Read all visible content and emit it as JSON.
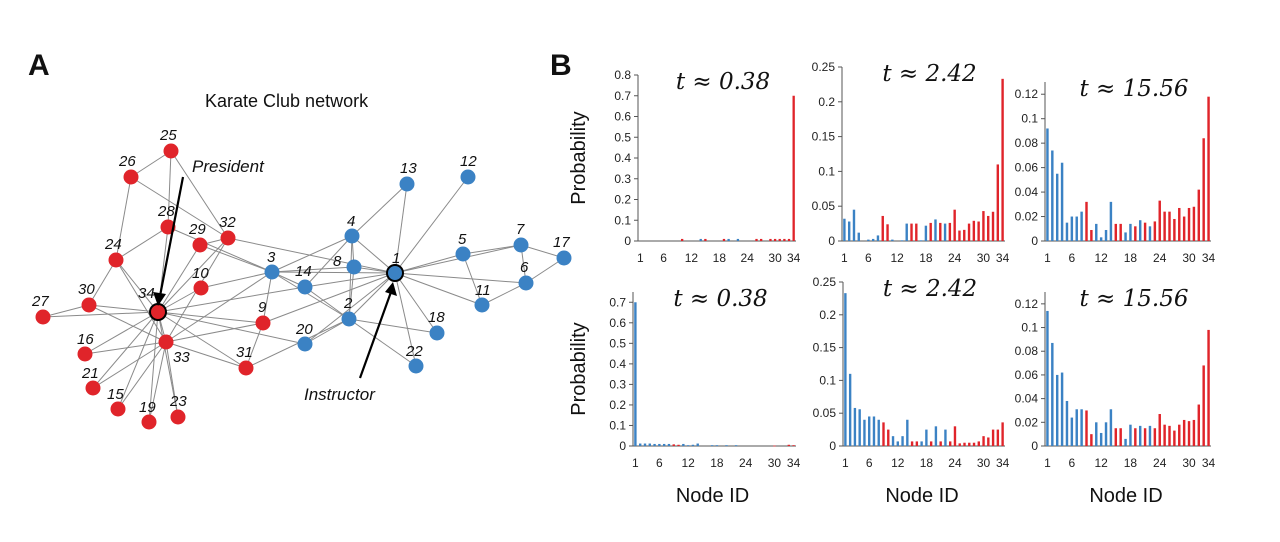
{
  "figure": {
    "panel_a_letter": "A",
    "panel_b_letter": "B",
    "network_title": "Karate Club network",
    "president_label": "President",
    "instructor_label": "Instructor"
  },
  "colors": {
    "faction_instructor": "#3b82c4",
    "faction_president": "#e0242a"
  },
  "network": {
    "nodes": [
      {
        "id": 1,
        "faction": "instructor",
        "highlight": true
      },
      {
        "id": 2,
        "faction": "instructor"
      },
      {
        "id": 3,
        "faction": "instructor"
      },
      {
        "id": 4,
        "faction": "instructor"
      },
      {
        "id": 5,
        "faction": "instructor"
      },
      {
        "id": 6,
        "faction": "instructor"
      },
      {
        "id": 7,
        "faction": "instructor"
      },
      {
        "id": 8,
        "faction": "instructor"
      },
      {
        "id": 9,
        "faction": "president"
      },
      {
        "id": 10,
        "faction": "president"
      },
      {
        "id": 11,
        "faction": "instructor"
      },
      {
        "id": 12,
        "faction": "instructor"
      },
      {
        "id": 13,
        "faction": "instructor"
      },
      {
        "id": 14,
        "faction": "instructor"
      },
      {
        "id": 15,
        "faction": "president"
      },
      {
        "id": 16,
        "faction": "president"
      },
      {
        "id": 17,
        "faction": "instructor"
      },
      {
        "id": 18,
        "faction": "instructor"
      },
      {
        "id": 19,
        "faction": "president"
      },
      {
        "id": 20,
        "faction": "instructor"
      },
      {
        "id": 21,
        "faction": "president"
      },
      {
        "id": 22,
        "faction": "instructor"
      },
      {
        "id": 23,
        "faction": "president"
      },
      {
        "id": 24,
        "faction": "president"
      },
      {
        "id": 25,
        "faction": "president"
      },
      {
        "id": 26,
        "faction": "president"
      },
      {
        "id": 27,
        "faction": "president"
      },
      {
        "id": 28,
        "faction": "president"
      },
      {
        "id": 29,
        "faction": "president"
      },
      {
        "id": 30,
        "faction": "president"
      },
      {
        "id": 31,
        "faction": "president"
      },
      {
        "id": 32,
        "faction": "president"
      },
      {
        "id": 33,
        "faction": "president"
      },
      {
        "id": 34,
        "faction": "president",
        "highlight": true
      }
    ],
    "edges": [
      [
        1,
        2
      ],
      [
        1,
        3
      ],
      [
        1,
        4
      ],
      [
        1,
        5
      ],
      [
        1,
        6
      ],
      [
        1,
        7
      ],
      [
        1,
        8
      ],
      [
        1,
        9
      ],
      [
        1,
        11
      ],
      [
        1,
        12
      ],
      [
        1,
        13
      ],
      [
        1,
        14
      ],
      [
        1,
        18
      ],
      [
        1,
        20
      ],
      [
        1,
        22
      ],
      [
        1,
        32
      ],
      [
        2,
        3
      ],
      [
        2,
        4
      ],
      [
        2,
        8
      ],
      [
        2,
        14
      ],
      [
        2,
        18
      ],
      [
        2,
        20
      ],
      [
        2,
        22
      ],
      [
        2,
        31
      ],
      [
        3,
        4
      ],
      [
        3,
        8
      ],
      [
        3,
        9
      ],
      [
        3,
        10
      ],
      [
        3,
        14
      ],
      [
        3,
        28
      ],
      [
        3,
        29
      ],
      [
        3,
        33
      ],
      [
        4,
        8
      ],
      [
        4,
        13
      ],
      [
        4,
        14
      ],
      [
        5,
        7
      ],
      [
        5,
        11
      ],
      [
        6,
        7
      ],
      [
        6,
        11
      ],
      [
        6,
        17
      ],
      [
        7,
        17
      ],
      [
        9,
        31
      ],
      [
        9,
        33
      ],
      [
        9,
        34
      ],
      [
        10,
        34
      ],
      [
        14,
        34
      ],
      [
        15,
        33
      ],
      [
        15,
        34
      ],
      [
        16,
        33
      ],
      [
        16,
        34
      ],
      [
        19,
        33
      ],
      [
        19,
        34
      ],
      [
        20,
        34
      ],
      [
        21,
        33
      ],
      [
        21,
        34
      ],
      [
        23,
        33
      ],
      [
        23,
        34
      ],
      [
        24,
        26
      ],
      [
        24,
        28
      ],
      [
        24,
        30
      ],
      [
        24,
        33
      ],
      [
        24,
        34
      ],
      [
        25,
        26
      ],
      [
        25,
        28
      ],
      [
        25,
        32
      ],
      [
        26,
        32
      ],
      [
        27,
        30
      ],
      [
        27,
        34
      ],
      [
        28,
        34
      ],
      [
        29,
        32
      ],
      [
        29,
        34
      ],
      [
        30,
        33
      ],
      [
        30,
        34
      ],
      [
        31,
        33
      ],
      [
        31,
        34
      ],
      [
        32,
        33
      ],
      [
        32,
        34
      ],
      [
        33,
        34
      ]
    ]
  },
  "chart_data": [
    {
      "type": "bar",
      "title": "t ≈ 0.38",
      "ylabel": "Probability",
      "xlabel": "",
      "x_ticks": [
        "1",
        "6",
        "12",
        "18",
        "24",
        "30",
        "34"
      ],
      "y_ticks": [
        "0",
        "0.1",
        "0.2",
        "0.3",
        "0.4",
        "0.5",
        "0.6",
        "0.7",
        "0.8"
      ],
      "ylim": [
        0,
        0.8
      ],
      "values": [
        0,
        0,
        0,
        0,
        0,
        0,
        0,
        0,
        0,
        0.01,
        0,
        0,
        0,
        0.01,
        0.01,
        0,
        0,
        0,
        0.01,
        0.01,
        0,
        0.01,
        0,
        0,
        0,
        0.01,
        0.01,
        0,
        0.01,
        0.01,
        0.01,
        0.01,
        0.01,
        0.7
      ]
    },
    {
      "type": "bar",
      "title": "t ≈ 2.42",
      "ylabel": "",
      "xlabel": "",
      "x_ticks": [
        "1",
        "6",
        "12",
        "18",
        "24",
        "30",
        "34"
      ],
      "y_ticks": [
        "0",
        "0.05",
        "0.1",
        "0.15",
        "0.2",
        "0.25"
      ],
      "ylim": [
        0,
        0.25
      ],
      "values": [
        0.032,
        0.028,
        0.045,
        0.012,
        0,
        0.002,
        0.003,
        0.008,
        0.036,
        0.024,
        0.002,
        0,
        0.001,
        0.025,
        0.025,
        0.025,
        0.001,
        0.022,
        0.026,
        0.031,
        0.026,
        0.025,
        0.026,
        0.045,
        0.015,
        0.016,
        0.025,
        0.029,
        0.028,
        0.043,
        0.036,
        0.042,
        0.11,
        0.233
      ]
    },
    {
      "type": "bar",
      "title": "t ≈ 15.56",
      "ylabel": "",
      "xlabel": "",
      "x_ticks": [
        "1",
        "6",
        "12",
        "18",
        "24",
        "30",
        "34"
      ],
      "y_ticks": [
        "0",
        "0.02",
        "0.04",
        "0.06",
        "0.08",
        "0.1",
        "0.12"
      ],
      "ylim": [
        0,
        0.13
      ],
      "values": [
        0.092,
        0.074,
        0.055,
        0.064,
        0.015,
        0.02,
        0.02,
        0.024,
        0.032,
        0.009,
        0.014,
        0.003,
        0.009,
        0.032,
        0.014,
        0.014,
        0.007,
        0.014,
        0.012,
        0.017,
        0.015,
        0.012,
        0.016,
        0.033,
        0.024,
        0.024,
        0.018,
        0.027,
        0.02,
        0.027,
        0.028,
        0.042,
        0.084,
        0.118
      ]
    },
    {
      "type": "bar",
      "title": "t ≈ 0.38",
      "ylabel": "Probability",
      "xlabel": "Node ID",
      "x_ticks": [
        "1",
        "6",
        "12",
        "18",
        "24",
        "30",
        "34"
      ],
      "y_ticks": [
        "0",
        "0.1",
        "0.2",
        "0.3",
        "0.4",
        "0.5",
        "0.6",
        "0.7"
      ],
      "ylim": [
        0,
        0.75
      ],
      "values": [
        0.7,
        0.012,
        0.012,
        0.012,
        0.01,
        0.01,
        0.01,
        0.01,
        0.008,
        0.006,
        0.01,
        0.004,
        0.006,
        0.012,
        0,
        0,
        0.004,
        0.004,
        0,
        0.004,
        0,
        0.004,
        0,
        0,
        0,
        0,
        0,
        0,
        0,
        0.002,
        0,
        0,
        0.006,
        0.004
      ]
    },
    {
      "type": "bar",
      "title": "t ≈ 2.42",
      "ylabel": "",
      "xlabel": "Node ID",
      "x_ticks": [
        "1",
        "6",
        "12",
        "18",
        "24",
        "30",
        "34"
      ],
      "y_ticks": [
        "0",
        "0.05",
        "0.1",
        "0.15",
        "0.2",
        "0.25"
      ],
      "ylim": [
        0,
        0.25
      ],
      "values": [
        0.233,
        0.11,
        0.058,
        0.056,
        0.04,
        0.045,
        0.045,
        0.04,
        0.036,
        0.025,
        0.015,
        0.007,
        0.015,
        0.04,
        0.007,
        0.007,
        0.007,
        0.025,
        0.007,
        0.03,
        0.007,
        0.025,
        0.007,
        0.03,
        0.004,
        0.005,
        0.005,
        0.005,
        0.007,
        0.015,
        0.013,
        0.025,
        0.025,
        0.036
      ]
    },
    {
      "type": "bar",
      "title": "t ≈ 15.56",
      "ylabel": "",
      "xlabel": "Node ID",
      "x_ticks": [
        "1",
        "6",
        "12",
        "18",
        "24",
        "30",
        "34"
      ],
      "y_ticks": [
        "0",
        "0.02",
        "0.04",
        "0.06",
        "0.08",
        "0.1",
        "0.12"
      ],
      "ylim": [
        0,
        0.13
      ],
      "values": [
        0.114,
        0.087,
        0.06,
        0.062,
        0.038,
        0.024,
        0.031,
        0.031,
        0.03,
        0.01,
        0.02,
        0.011,
        0.02,
        0.031,
        0.015,
        0.015,
        0.006,
        0.018,
        0.015,
        0.017,
        0.015,
        0.017,
        0.015,
        0.027,
        0.018,
        0.017,
        0.013,
        0.018,
        0.022,
        0.021,
        0.022,
        0.035,
        0.068,
        0.098
      ]
    }
  ]
}
